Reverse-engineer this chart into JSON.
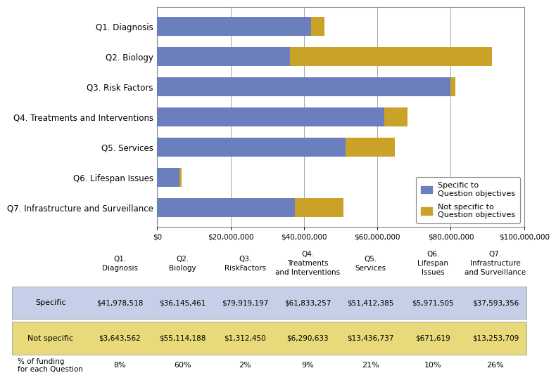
{
  "categories": [
    "Q1. Diagnosis",
    "Q2. Biology",
    "Q3. Risk Factors",
    "Q4. Treatments and Interventions",
    "Q5. Services",
    "Q6. Lifespan Issues",
    "Q7. Infrastructure and Surveillance"
  ],
  "specific": [
    41978518,
    36145461,
    79919197,
    61833257,
    51412385,
    5971505,
    37593356
  ],
  "not_specific": [
    3643562,
    55114188,
    1312450,
    6290633,
    13436737,
    671619,
    13253709
  ],
  "color_specific": "#6B7FBF",
  "color_not_specific": "#C9A227",
  "legend_specific": "Specific to\nQuestion objectives",
  "legend_not_specific": "Not specific to\nQuestion objectives",
  "xlim": [
    0,
    100000000
  ],
  "xticks": [
    0,
    20000000,
    40000000,
    60000000,
    80000000,
    100000000
  ],
  "xtick_labels": [
    "$0",
    "$20,000,000",
    "$40,000,000",
    "$60,000,000",
    "$80,000,000",
    "$100,000,000"
  ],
  "table_col_headers_line1": [
    "Q1.",
    "Q2.",
    "Q3.",
    "Q4.",
    "Q5.",
    "Q6.",
    "Q7."
  ],
  "table_col_headers_line2": [
    "Diagnosis",
    "Biology",
    "RiskFactors",
    "Treatments",
    "Services",
    "Lifespan",
    "Infrastructure"
  ],
  "table_col_headers_line3": [
    "",
    "",
    "",
    "and Interventions",
    "",
    "Issues",
    "and Surveillance"
  ],
  "table_specific_vals": [
    "$41,978,518",
    "$36,145,461",
    "$79,919,197",
    "$61,833,257",
    "$51,412,385",
    "$5,971,505",
    "$37,593,356"
  ],
  "table_not_specific_vals": [
    "$3,643,562",
    "$55,114,188",
    "$1,312,450",
    "$6,290,633",
    "$13,436,737",
    "$671,619",
    "$13,253,709"
  ],
  "table_pct_vals": [
    "8%",
    "60%",
    "2%",
    "9%",
    "21%",
    "10%",
    "26%"
  ],
  "color_specific_row": "#C5CFE8",
  "color_not_specific_row": "#E8D97A",
  "background_color": "#ffffff"
}
